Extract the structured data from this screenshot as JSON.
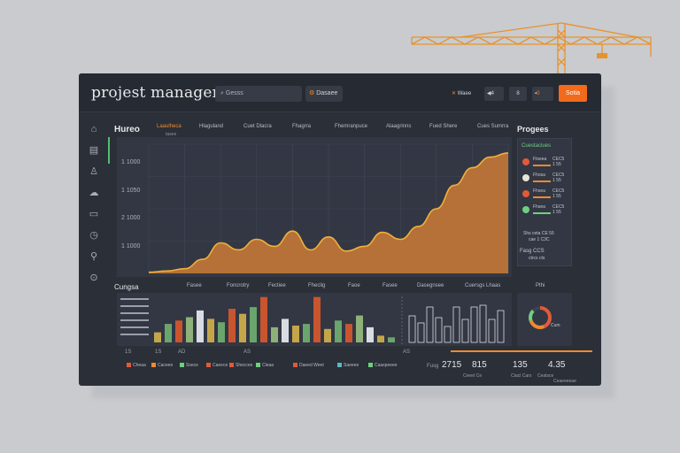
{
  "app": {
    "title": "projest managert"
  },
  "topbar": {
    "search_placeholder": "Gesss",
    "dashboard_label": "Dasaee",
    "items": [
      "Waee",
      "4",
      "8",
      "0",
      "8"
    ],
    "cta_label": "Sotia"
  },
  "sidebar": {
    "icons": [
      "home-icon",
      "folder-icon",
      "user-icon",
      "chat-icon",
      "card-icon",
      "clock-icon",
      "search-icon",
      "gear-icon"
    ]
  },
  "main": {
    "title": "Hureo",
    "columns": [
      {
        "label": "Laaulheca",
        "sub": "tasee",
        "active": true
      },
      {
        "label": "Hlaguland",
        "active": false
      },
      {
        "label": "Cuet Dlacra",
        "active": false
      },
      {
        "label": "Fhagrra",
        "active": false
      },
      {
        "label": "Fhemranpuce",
        "active": false
      },
      {
        "label": "Alaagrinns",
        "active": false
      },
      {
        "label": "Fued Shere",
        "active": false
      },
      {
        "label": "Cues Sumrra",
        "active": false
      }
    ],
    "yticks": [
      "1 1000",
      "1 1050",
      "2 1000",
      "1 1000"
    ]
  },
  "chart_data": [
    {
      "type": "area",
      "title": "Hureo",
      "x": [
        0,
        1,
        2,
        3,
        4,
        5,
        6,
        7,
        8,
        9,
        10,
        11,
        12,
        13,
        14,
        15,
        16,
        17,
        18,
        19,
        20
      ],
      "values": [
        2,
        4,
        8,
        24,
        52,
        40,
        58,
        46,
        72,
        40,
        62,
        38,
        46,
        70,
        58,
        80,
        110,
        150,
        180,
        198,
        205
      ],
      "ylim": [
        0,
        220
      ],
      "color": "#c07636"
    },
    {
      "type": "bar",
      "title": "Cungsa",
      "series": [
        {
          "name": "group-a",
          "values": [
            12,
            22,
            26,
            30,
            38,
            28,
            24,
            40,
            34,
            42,
            54,
            18,
            28,
            20,
            22,
            54,
            16,
            26,
            22,
            32,
            18,
            8,
            6
          ]
        },
        {
          "name": "group-b",
          "values": [
            30,
            22,
            40,
            28,
            18,
            40,
            26,
            40,
            42,
            26,
            36
          ]
        }
      ],
      "colors": [
        "#c4a64a",
        "#6aa56d",
        "#c9552f",
        "#8db179",
        "#d9dde3",
        "#c4a64a",
        "#6aa56d",
        "#c9552f"
      ]
    }
  ],
  "progress": {
    "title": "Progees",
    "head": "Cuestaciues",
    "rows": [
      {
        "name": "Ftseea",
        "val": "CEC5",
        "sub": "1 55",
        "color": "#e05a3a"
      },
      {
        "name": "Fhosa",
        "val": "CEC5",
        "sub": "1 55",
        "color": "#e9e4d8"
      },
      {
        "name": "Fhsea",
        "val": "CEC5",
        "sub": "1 55",
        "color": "#e05a3a"
      },
      {
        "name": "Fhsea",
        "val": "CEC5",
        "sub": "1 55",
        "color": "#6fcf7f"
      }
    ],
    "foot": "Shs ceta   CE 55",
    "foot2": "cae 1 C3C",
    "total": "Fasg CCS",
    "total2": "ctrcs cts"
  },
  "bars_section": {
    "title": "Cungsa",
    "heads": [
      "Fasee",
      "Foncrotry",
      "Fectiee",
      "Fheclig",
      "Faoe",
      "Fasee",
      "Dasegnsee",
      "Cuersgs Lhaas"
    ],
    "xlabels": [
      "1S",
      "1S",
      "AD",
      "AS",
      "AS"
    ],
    "legend": [
      "Cheaa",
      "Caceee",
      "Ssece",
      "Caeece",
      "Sheccee",
      "Cleaa",
      "Daeed Weet",
      "Saeeee",
      "Caaspeeee"
    ],
    "donut_head": "Pthi",
    "donut_label": "Cum"
  },
  "stats": {
    "label": "Fusg",
    "items": [
      {
        "value": "2715",
        "sub": "Ceeet Ce"
      },
      {
        "value": "815",
        "sub": "Ctacl Cars"
      },
      {
        "value": "135",
        "sub": "Ceatsce"
      },
      {
        "value": "4.35",
        "sub": "Ceaeeeeae"
      }
    ]
  }
}
